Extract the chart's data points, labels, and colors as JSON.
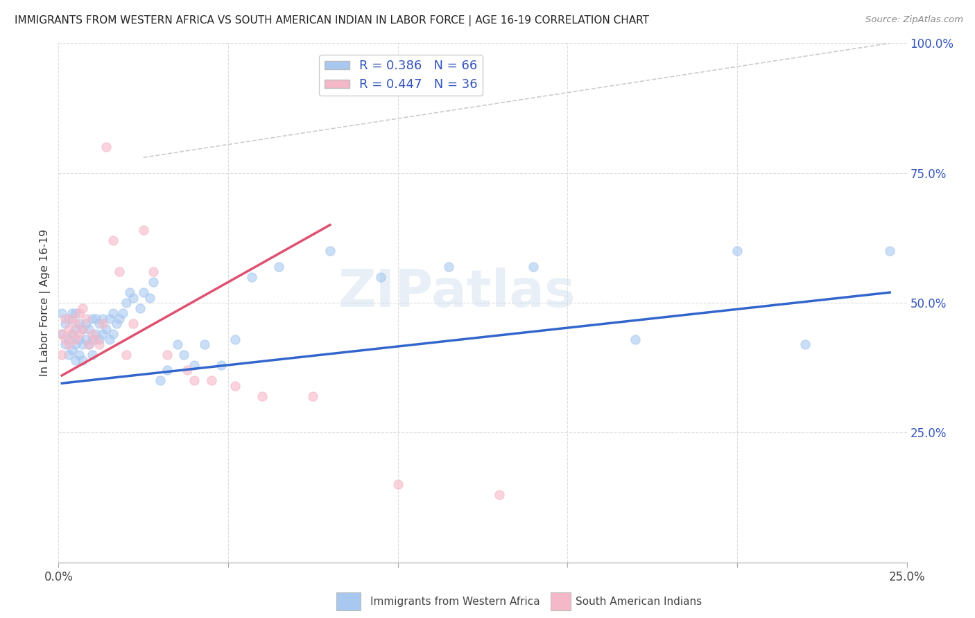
{
  "title": "IMMIGRANTS FROM WESTERN AFRICA VS SOUTH AMERICAN INDIAN IN LABOR FORCE | AGE 16-19 CORRELATION CHART",
  "source_text": "Source: ZipAtlas.com",
  "ylabel": "In Labor Force | Age 16-19",
  "xlim": [
    0.0,
    0.25
  ],
  "ylim": [
    0.0,
    1.0
  ],
  "xticks": [
    0.0,
    0.05,
    0.1,
    0.15,
    0.2,
    0.25
  ],
  "xtick_labels": [
    "0.0%",
    "",
    "",
    "",
    "",
    "25.0%"
  ],
  "yticks_right": [
    0.25,
    0.5,
    0.75,
    1.0
  ],
  "ytick_labels_right": [
    "25.0%",
    "50.0%",
    "75.0%",
    "100.0%"
  ],
  "blue_color": "#A8C8F0",
  "pink_color": "#F5B8C8",
  "blue_line_color": "#3366CC",
  "pink_line_color": "#E05070",
  "legend_text_color": "#3355BB",
  "R_blue": 0.386,
  "N_blue": 66,
  "R_pink": 0.447,
  "N_pink": 36,
  "watermark": "ZIPatlas",
  "background_color": "#FFFFFF",
  "grid_color": "#DDDDDD",
  "ref_line_color": "#CCCCCC",
  "blue_scatter_x": [
    0.001,
    0.001,
    0.002,
    0.002,
    0.003,
    0.003,
    0.003,
    0.004,
    0.004,
    0.004,
    0.005,
    0.005,
    0.005,
    0.005,
    0.006,
    0.006,
    0.006,
    0.007,
    0.007,
    0.007,
    0.008,
    0.008,
    0.009,
    0.009,
    0.01,
    0.01,
    0.01,
    0.011,
    0.011,
    0.012,
    0.012,
    0.013,
    0.013,
    0.014,
    0.015,
    0.015,
    0.016,
    0.016,
    0.017,
    0.018,
    0.019,
    0.02,
    0.021,
    0.022,
    0.024,
    0.025,
    0.027,
    0.028,
    0.03,
    0.032,
    0.035,
    0.037,
    0.04,
    0.043,
    0.048,
    0.052,
    0.057,
    0.065,
    0.08,
    0.095,
    0.115,
    0.14,
    0.17,
    0.2,
    0.22,
    0.245
  ],
  "blue_scatter_y": [
    0.44,
    0.48,
    0.42,
    0.46,
    0.43,
    0.47,
    0.4,
    0.44,
    0.48,
    0.41,
    0.42,
    0.45,
    0.48,
    0.39,
    0.43,
    0.46,
    0.4,
    0.42,
    0.45,
    0.39,
    0.43,
    0.46,
    0.42,
    0.45,
    0.43,
    0.47,
    0.4,
    0.44,
    0.47,
    0.43,
    0.46,
    0.44,
    0.47,
    0.45,
    0.43,
    0.47,
    0.44,
    0.48,
    0.46,
    0.47,
    0.48,
    0.5,
    0.52,
    0.51,
    0.49,
    0.52,
    0.51,
    0.54,
    0.35,
    0.37,
    0.42,
    0.4,
    0.38,
    0.42,
    0.38,
    0.43,
    0.55,
    0.57,
    0.6,
    0.55,
    0.57,
    0.57,
    0.43,
    0.6,
    0.42,
    0.6
  ],
  "pink_scatter_x": [
    0.001,
    0.001,
    0.002,
    0.002,
    0.003,
    0.003,
    0.004,
    0.004,
    0.005,
    0.005,
    0.006,
    0.006,
    0.007,
    0.007,
    0.008,
    0.009,
    0.01,
    0.011,
    0.012,
    0.013,
    0.014,
    0.016,
    0.018,
    0.02,
    0.022,
    0.025,
    0.028,
    0.032,
    0.038,
    0.04,
    0.045,
    0.052,
    0.06,
    0.075,
    0.1,
    0.13
  ],
  "pink_scatter_y": [
    0.44,
    0.4,
    0.43,
    0.47,
    0.42,
    0.45,
    0.44,
    0.47,
    0.43,
    0.46,
    0.44,
    0.48,
    0.45,
    0.49,
    0.47,
    0.42,
    0.44,
    0.43,
    0.42,
    0.46,
    0.8,
    0.62,
    0.56,
    0.4,
    0.46,
    0.64,
    0.56,
    0.4,
    0.37,
    0.35,
    0.35,
    0.34,
    0.32,
    0.32,
    0.15,
    0.13
  ],
  "blue_trend_x": [
    0.001,
    0.245
  ],
  "blue_trend_y": [
    0.345,
    0.52
  ],
  "pink_trend_x": [
    0.001,
    0.08
  ],
  "pink_trend_y": [
    0.36,
    0.65
  ],
  "ref_line_x": [
    0.025,
    0.245
  ],
  "ref_line_y": [
    0.78,
    1.0
  ]
}
